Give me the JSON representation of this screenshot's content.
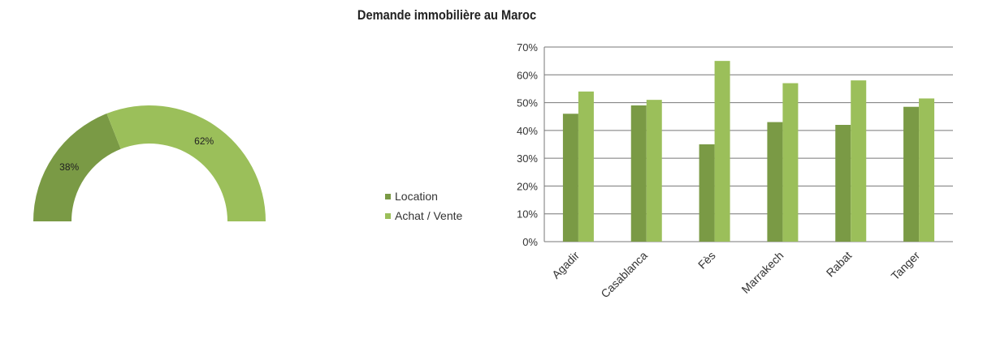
{
  "chart_data": [
    {
      "type": "pie",
      "style": "half-donut",
      "slices": [
        {
          "name": "Location",
          "value": 38,
          "label": "38%"
        },
        {
          "name": "Achat / Vente",
          "value": 62,
          "label": "62%"
        }
      ]
    },
    {
      "type": "bar",
      "title": "Demande immobilière au Maroc",
      "categories": [
        "Agadir",
        "Casablanca",
        "Fès",
        "Marrakech",
        "Rabat",
        "Tanger"
      ],
      "series": [
        {
          "name": "Location",
          "values": [
            46,
            49,
            35,
            43,
            42,
            48.5
          ]
        },
        {
          "name": "Achat / Vente",
          "values": [
            54,
            51,
            65,
            57,
            58,
            51.5
          ]
        }
      ],
      "ylim": [
        0,
        70
      ],
      "yticks": [
        "0%",
        "10%",
        "20%",
        "30%",
        "40%",
        "50%",
        "60%",
        "70%"
      ],
      "grid": true,
      "legend": "left"
    }
  ],
  "colors": {
    "location": "#7a9a45",
    "achat": "#9bbf5a"
  }
}
